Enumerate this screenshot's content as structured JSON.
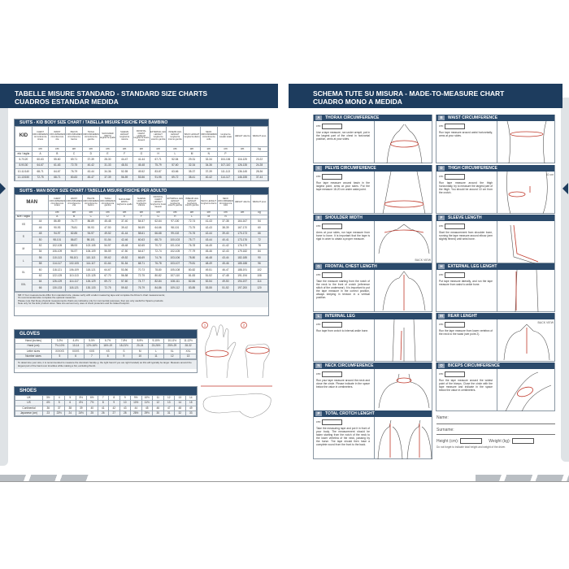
{
  "left": {
    "title1": "TABELLE MISURE STANDARD - STANDARD SIZE CHARTS",
    "title2": "CUADROS ESTANDAR MEDIDA",
    "kid": {
      "title_bold": "SUITS",
      "title": " - KID BODY SIZE CHART / TABELLA MISURE FISICHE PER BAMBINO",
      "corner": "KID",
      "headers": [
        "CHEST CIRCUMFERENCE circonferenza torace",
        "WAIST CIRCUMFERENCE circonferenza vita",
        "PELVIS CIRCUMFERENCE circonferenza bacino",
        "THIGH CIRCUMFERENCE circonferenza gamba",
        "SHOULDER WIDTH larghezza spalle",
        "SLEEVE LENGHT lunghezza manica",
        "FRONTAL CHEST LENGHT lunghezza busto davanti",
        "EXTERNAL LEG LENGHT lunghezza esterno gamba",
        "INSEAM LEG LENGHT lunghezza interno gamba",
        "BACK LENGHT lunghezza dietro",
        "NECK CIRCUMFERENCE circonferenza collo",
        "lunghezza cavallo totale",
        "HEIGHT altezza",
        "WEIGHT peso"
      ],
      "units": [
        "",
        "cm",
        "cm",
        "cm",
        "cm",
        "cm",
        "cm",
        "cm",
        "cm",
        "cm",
        "cm",
        "cm",
        "cm",
        "cm",
        "kg"
      ],
      "letters": [
        "età / taglia",
        "A",
        "B",
        "C",
        "D",
        "E",
        "F",
        "G",
        "H",
        "L",
        "M",
        "N",
        "P",
        "",
        ""
      ],
      "rows": [
        [
          "6-7/120",
          "60-63",
          "55-60",
          "69-71",
          "37-39",
          "28-30",
          "44-47",
          "41-44",
          "67-71",
          "52-54",
          "29-31",
          "32-34",
          "104-106",
          "116-125",
          "20-22"
        ],
        [
          "8-9/130",
          "64-67",
          "61-63",
          "72-75",
          "40-42",
          "31-33",
          "48-51",
          "45-48",
          "75-79",
          "57-60",
          "32-34",
          "34-36",
          "107-110",
          "126-135",
          "24-28"
        ],
        [
          "10-11/140",
          "68-71",
          "64-67",
          "76-79",
          "43-44",
          "34-36",
          "52-55",
          "49-52",
          "83-87",
          "63-66",
          "35-37",
          "37-39",
          "111-113",
          "136-145",
          "28-36"
        ],
        [
          "12-13/150",
          "72-75",
          "68-71",
          "80-83",
          "45-47",
          "37-39",
          "56-59",
          "53-56",
          "91-95",
          "69-72",
          "38-41",
          "40-42",
          "114-117",
          "146-155",
          "37-44"
        ]
      ]
    },
    "man": {
      "title_bold": "SUITS",
      "title": " - MAN BODY SIZE CHART / TABELLA MISURE FISICHE PER ADULTO",
      "corner": "MAN",
      "headers": [
        "CHEST CIRCUMFERENCE circonferenza torace",
        "WAIST CIRCUMFERENCE circonferenza vita",
        "PELVIS CIRCUMFERENCE circonferenza bacino",
        "THIGH CIRCUMFERENCE circonferenza gamba",
        "SHOULDER WIDTH larghezza spalle",
        "SLEEVE LENGHT lunghezza manica",
        "FRONTAL CHEST LENGHT lunghezza busto davanti",
        "EXTERNAL LEG LENGHT lunghezza esterno gamba",
        "INSEAM LEG LENGHT lunghezza interno gamba",
        "BACK LENGHT lunghezza dietro",
        "NECK CIRCUMFERENCE circonferenza collo",
        "HEIGHT altezza",
        "WEIGHT peso"
      ],
      "units": [
        "",
        "",
        "cm",
        "cm",
        "cm",
        "cm",
        "cm",
        "cm",
        "cm",
        "cm",
        "cm",
        "cm",
        "cm",
        "cm",
        "kg"
      ],
      "letters": [
        "size / taglia",
        "",
        "A",
        "B",
        "C",
        "D",
        "E",
        "F",
        "G",
        "H",
        "L",
        "M",
        "N",
        "",
        ""
      ],
      "groups": [
        "XS",
        "S",
        "M",
        "L",
        "XL",
        "XXL"
      ],
      "rows": [
        [
          "44",
          "86-89",
          "74-77",
          "86-89",
          "45-48",
          "37-40",
          "54-57",
          "62-64",
          "97-100",
          "72-74",
          "41-43",
          "37-38",
          "164-167",
          "54"
        ],
        [
          "46",
          "90-93",
          "78-81",
          "90-93",
          "47-50",
          "39-42",
          "56-59",
          "64-66",
          "98-101",
          "73-75",
          "42-43",
          "38-39",
          "167-170",
          "60"
        ],
        [
          "48",
          "94-97",
          "82-85",
          "94-97",
          "49-52",
          "41-44",
          "58-61",
          "66-68",
          "99-102",
          "74-76",
          "42-44",
          "39-40",
          "170-173",
          "66"
        ],
        [
          "50",
          "98-101",
          "86-87",
          "98-101",
          "51-54",
          "42-46",
          "60-63",
          "68-70",
          "100-103",
          "75-77",
          "43-44",
          "40-41",
          "173-176",
          "72"
        ],
        [
          "52",
          "102-105",
          "88-93",
          "102-105",
          "54-57",
          "45-48",
          "62-65",
          "70-72",
          "101-104",
          "76-78",
          "44-45",
          "41-42",
          "176-179",
          "78"
        ],
        [
          "54",
          "106-109",
          "94-97",
          "106-109",
          "56-59",
          "47-50",
          "64-67",
          "72-74",
          "102-105",
          "77-79",
          "45-46",
          "42-43",
          "179-182",
          "84"
        ],
        [
          "56",
          "110-113",
          "98-101",
          "110-113",
          "59-62",
          "49-52",
          "66-69",
          "74-76",
          "103-106",
          "78-80",
          "46-48",
          "43-44",
          "182-185",
          "90"
        ],
        [
          "58",
          "114-117",
          "102-105",
          "114-117",
          "61-64",
          "51-54",
          "68-71",
          "76-78",
          "103-107",
          "79-81",
          "48-49",
          "45-46",
          "185-188",
          "96"
        ],
        [
          "60",
          "118-121",
          "106-109",
          "118-121",
          "64-67",
          "53-56",
          "70-73",
          "78-80",
          "105-108",
          "80-82",
          "49-51",
          "46-47",
          "188-191",
          "102"
        ],
        [
          "62",
          "122-125",
          "110-113",
          "122-125",
          "67-70",
          "56-58",
          "72-75",
          "80-82",
          "107-110",
          "81-83",
          "51-52",
          "47-48",
          "191-194",
          "108"
        ],
        [
          "64",
          "126-129",
          "114-117",
          "126-129",
          "69-72",
          "57-60",
          "74-77",
          "82-84",
          "108-111",
          "82-84",
          "52-54",
          "49-50",
          "194-197",
          "114"
        ],
        [
          "66",
          "130-133",
          "118-121",
          "130-133",
          "72-75",
          "59-62",
          "76-79",
          "84-86",
          "109-112",
          "83-85",
          "53-55",
          "51-52",
          "197-200",
          "120"
        ]
      ],
      "note": [
        "NB: If Your measurements differ from standard size, please verify with a tailor measuring tape and complete the Driver's chart measurements;",
        "It's recommended also complete the optional measures.",
        "Please note that these physical measurements charts are indicative only for commercial purposes, then are only usefull for Sparco products.",
        "Note only for the kids' product sizes: Take into account any uses of chest protectors and its related footprint."
      ]
    },
    "gloves": {
      "title": "GLOVES",
      "rows": [
        [
          "Hand (inches)",
          "3-3½",
          "4-4½",
          "5-5½",
          "6-7½",
          "7-8½",
          "8-9½",
          "9-10½",
          "10-11½",
          "11-12½"
        ],
        [
          "Hand (cm)",
          "7½-10½",
          "10-14",
          "12½-16½",
          "16½-19",
          "18-21½",
          "20-24",
          "23-26½",
          "25½-29",
          "28-32"
        ],
        [
          "Letter sizes",
          "XXXXS",
          "XXXS",
          "XXS",
          "XS",
          "S",
          "M",
          "L",
          "XL",
          "XXL"
        ],
        [
          "Number sizes",
          "5",
          "6",
          "7",
          "8",
          "9",
          "10",
          "11",
          "12",
          "13"
        ]
      ],
      "note": "To determine your size, it is recommended to measure the dominant hand(e.g. the right hand if you are right handed) as this will typically be larger. Measure around the largest part of the hand over knuckles while making a fist, excluding thumb.",
      "markers": [
        "1",
        "2"
      ]
    },
    "shoes": {
      "title": "SHOES",
      "rows": [
        [
          "UK",
          "3½",
          "4",
          "5",
          "5½",
          "6½",
          "7",
          "8",
          "9",
          "9½",
          "10½",
          "11",
          "12",
          "13",
          "14"
        ],
        [
          "US",
          "4½",
          "5",
          "6",
          "6½",
          "7½",
          "8",
          "9",
          "10",
          "10½",
          "11½",
          "12",
          "13",
          "14",
          "15"
        ],
        [
          "Continental",
          "36",
          "37",
          "38",
          "39",
          "40",
          "41",
          "42",
          "43",
          "44",
          "45",
          "46",
          "47",
          "48",
          "49"
        ],
        [
          "Japanese (cm)",
          "23",
          "23½",
          "24",
          "24½",
          "25",
          "26",
          "27",
          "28",
          "28½",
          "29½",
          "30",
          "31",
          "32",
          "33"
        ]
      ]
    }
  },
  "right": {
    "title1": "SCHEMA TUTE SU MISURA - MADE-TO-MEASURE CHART",
    "title2": "CUADRO MONO A MEDIDA",
    "cm_label": "cm:",
    "sections": [
      {
        "letter": "A",
        "title": "THORAX CIRCUMFERENCE",
        "desc": "Use a tape measure, run under armpit, put in the largest part of the chest in horizontal position, arms at your sides."
      },
      {
        "letter": "B",
        "title": "WAIST CIRCUMFERENCE",
        "desc": "Run tape measure around waist horizontally, arms at your sides."
      },
      {
        "letter": "C",
        "title": "PELVIS CIRCUMFERENCE",
        "desc": "Run tape measure around basin in the largest point, arms at your sides. Put the tape measure 18-20 cm under waist point."
      },
      {
        "letter": "D",
        "title": "THIGH CIRCUMFERENCE",
        "desc": "Run tape measure around the thigh horizontally, try to measure the largest part of the thigh. You should be around 10 cm from the crotch.",
        "fig_label": "10 cm"
      },
      {
        "letter": "E",
        "title": "SHOULDER WIDTH",
        "desc": "Arms at your sides, run tape measure from bone to bone. It is important that the tape is rigid in order to obtain a proper measure.",
        "fig_label": "BACK VIEW"
      },
      {
        "letter": "F",
        "title": "SLEEVE LENGTH",
        "desc": "Start the measurement from shoulder bone, running the tape measure around elbow (arm slightly flexed) until wrist bone."
      },
      {
        "letter": "G",
        "title": "FRONTAL CHEST LENGTH",
        "desc": "Take the measure starting from the notch of the neck to the front of crotch (reference stitch of the underwear). It is important to put the tape measure in the correct position, always keeping in tension in a vertical position."
      },
      {
        "letter": "H",
        "title": "EXTERNAL LEG LENGHT",
        "desc": "Put tape measure laterally, and run the tape measure from waist to ankle bone."
      },
      {
        "letter": "L",
        "title": "INTERNAL LEG",
        "desc": "Run tape from crotch to internal ankle bone."
      },
      {
        "letter": "M",
        "title": "REAR LENGHT",
        "desc": "Run the tape measure from lower vertebra of the neck to the waist (see point 2).",
        "fig_label": "BACK VIEW"
      },
      {
        "letter": "N",
        "title": "NECK CIRCUMFERENCE",
        "desc": "Run your tape measure around the neck and close the circle. Please indicate in the space below the value in centimeters."
      },
      {
        "letter": "O",
        "title": "BICEPS CIRCUMFERENCE",
        "desc": "Run the tape measure around the widest point of the biceps. Close the circle with the tape measure and indicate in the space below the value in centimeters."
      },
      {
        "letter": "P",
        "title": "TOTAL CROTCH LENGHT",
        "desc": "Take the measuring tape and put it in front of your body. The measurement should be taken starting from the notch of the neck to the lower vertebra of the neck, passing by the horse. The tape should then have a complete round from the front to the back."
      }
    ],
    "form": {
      "name": "Name:",
      "surname": "Surname:",
      "height": "Height (cm):",
      "weight": "Weight (kg):",
      "note": "Do not forget to indicate total height and weight of the driver.",
      "name_value": "",
      "surname_value": "",
      "height_value": "",
      "weight_value": ""
    }
  },
  "colors": {
    "navy": "#1d3c5e",
    "accent_red": "#c0392b"
  }
}
